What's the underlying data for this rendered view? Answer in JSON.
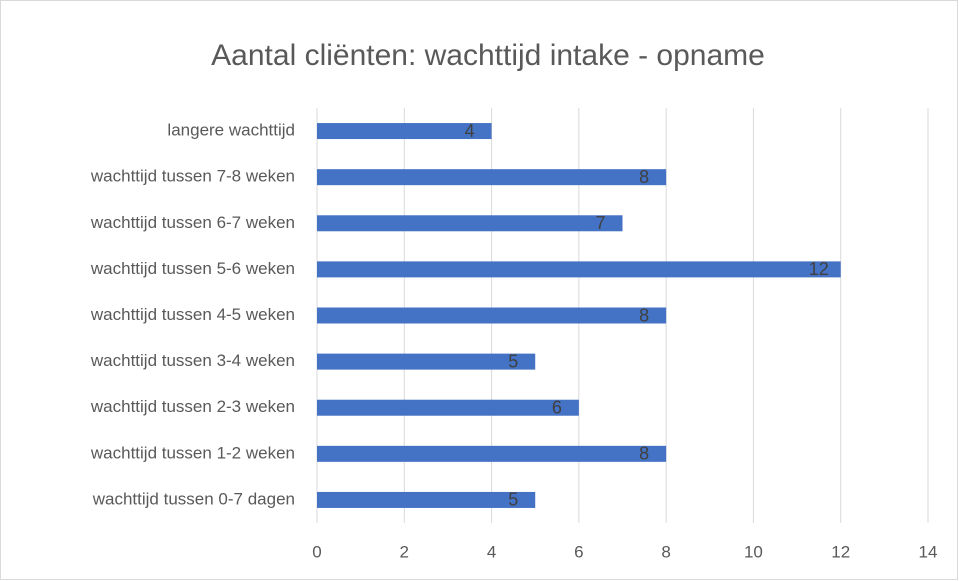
{
  "chart_data": {
    "type": "bar",
    "orientation": "horizontal",
    "title": "Aantal cliënten: wachttijd intake - opname",
    "categories": [
      "langere wachttijd",
      "wachttijd tussen 7-8 weken",
      "wachttijd tussen 6-7 weken",
      "wachttijd tussen 5-6 weken",
      "wachttijd tussen 4-5 weken",
      "wachttijd tussen 3-4 weken",
      "wachttijd tussen 2-3 weken",
      "wachttijd tussen 1-2 weken",
      "wachttijd tussen 0-7 dagen"
    ],
    "values": [
      4,
      8,
      7,
      12,
      8,
      5,
      6,
      8,
      5
    ],
    "color": "#4472c4",
    "xlim": [
      0,
      14
    ],
    "xticks": [
      0,
      2,
      4,
      6,
      8,
      10,
      12,
      14
    ],
    "grid": true
  }
}
